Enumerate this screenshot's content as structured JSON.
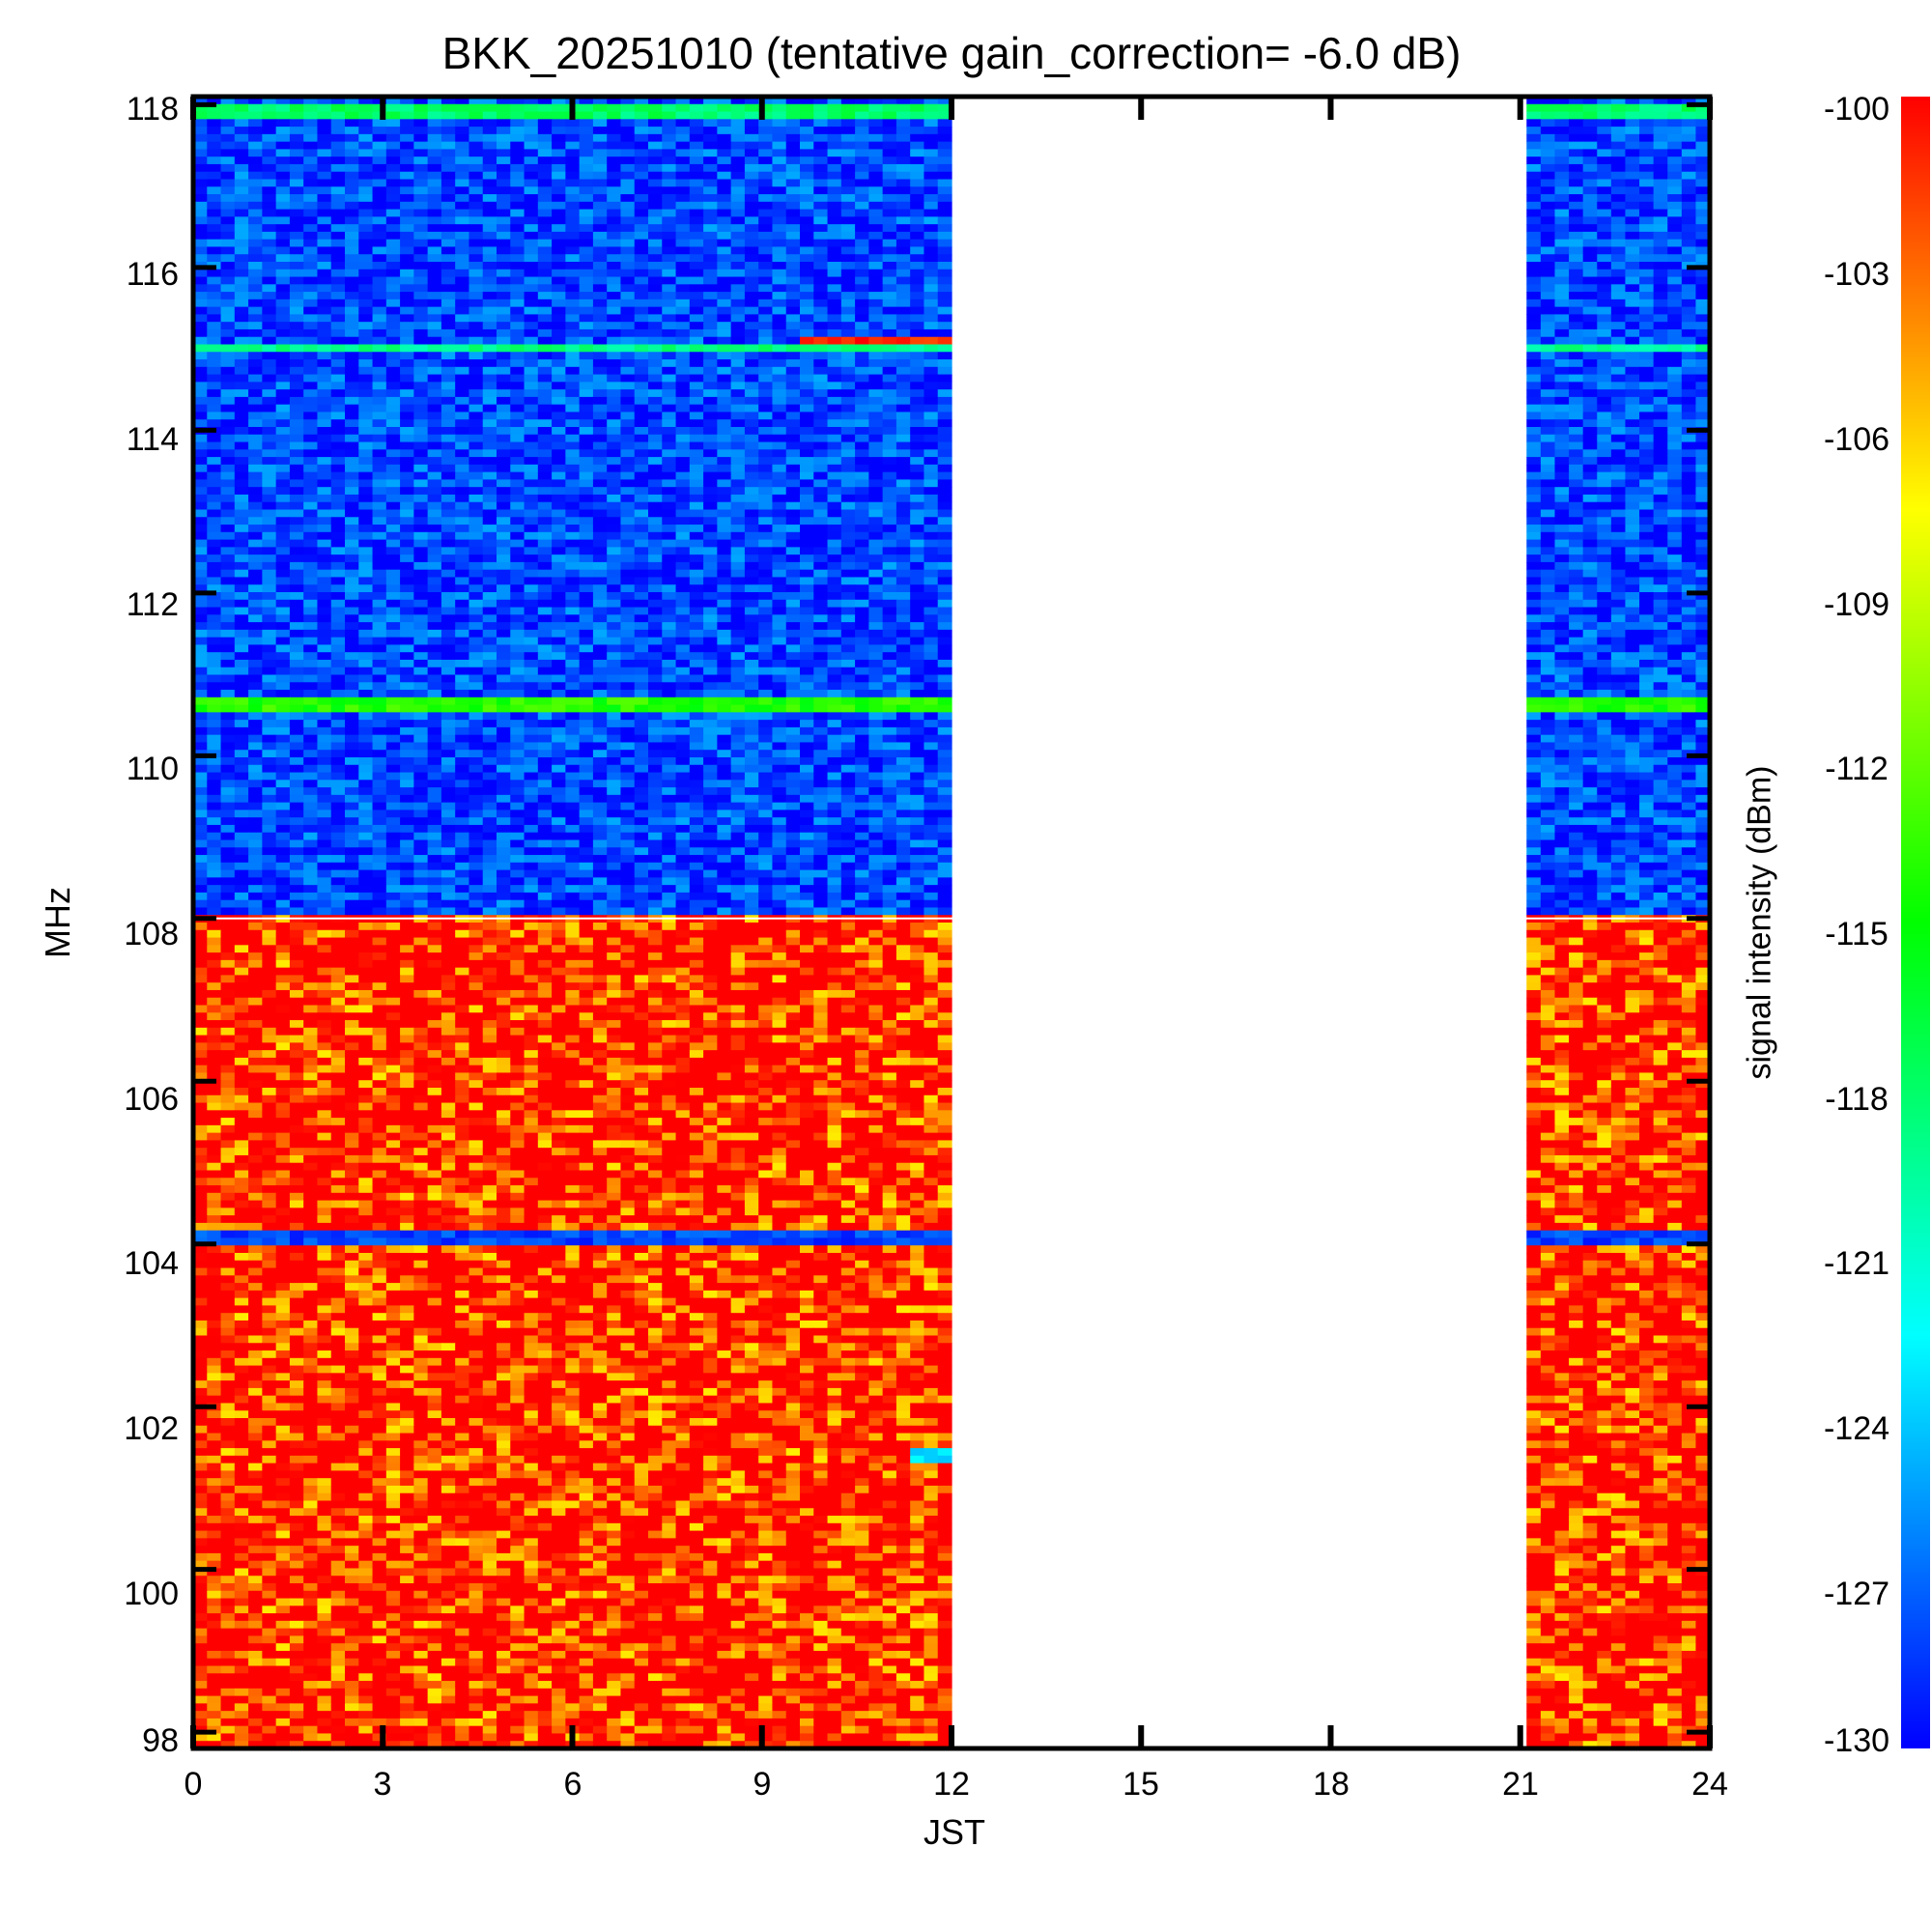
{
  "chart_data": {
    "type": "heatmap",
    "title": "BKK_20251010 (tentative gain_correction= -6.0 dB)",
    "xlabel": "JST",
    "ylabel": "MHz",
    "colorbar_label": "signal intensity (dBm)",
    "x_ticks": [
      "0",
      "3",
      "6",
      "9",
      "12",
      "15",
      "18",
      "21",
      "24"
    ],
    "y_ticks": [
      "118",
      "116",
      "114",
      "112",
      "110",
      "108",
      "106",
      "104",
      "102",
      "100",
      "98"
    ],
    "colorbar_ticks": [
      "-100",
      "-103",
      "-106",
      "-109",
      "-112",
      "-115",
      "-118",
      "-121",
      "-124",
      "-127",
      "-130"
    ],
    "xlim": [
      0,
      24
    ],
    "ylim": [
      97.8,
      118.1
    ],
    "clim": [
      -130,
      -100
    ],
    "colormap": "rainbow (blue low, red high)",
    "data_segments": [
      {
        "jst_start": 0,
        "jst_end": 12
      },
      {
        "jst_start": 21.1,
        "jst_end": 24
      }
    ],
    "no_data_gap": {
      "jst_start": 12,
      "jst_end": 21.1
    },
    "band_levels_dBm": [
      {
        "freq_low": 108.0,
        "freq_high": 118.1,
        "typical": -128
      },
      {
        "freq_low": 97.8,
        "freq_high": 108.0,
        "typical": -100
      }
    ],
    "features": [
      {
        "description": "persistent carrier",
        "freq": 117.9,
        "level": -118
      },
      {
        "description": "persistent carrier",
        "freq": 115.0,
        "level": -119
      },
      {
        "description": "transient strong signal",
        "freq": 115.1,
        "jst_start": 9.7,
        "jst_end": 12.0,
        "level": -101
      },
      {
        "description": "carrier",
        "freq": 110.6,
        "level": -114
      },
      {
        "description": "quiet band",
        "freq": 104.1,
        "level": -128
      },
      {
        "description": "low-level band",
        "freq": 101.4,
        "jst_start": 11.4,
        "jst_end": 12.0,
        "level": -124
      }
    ]
  }
}
